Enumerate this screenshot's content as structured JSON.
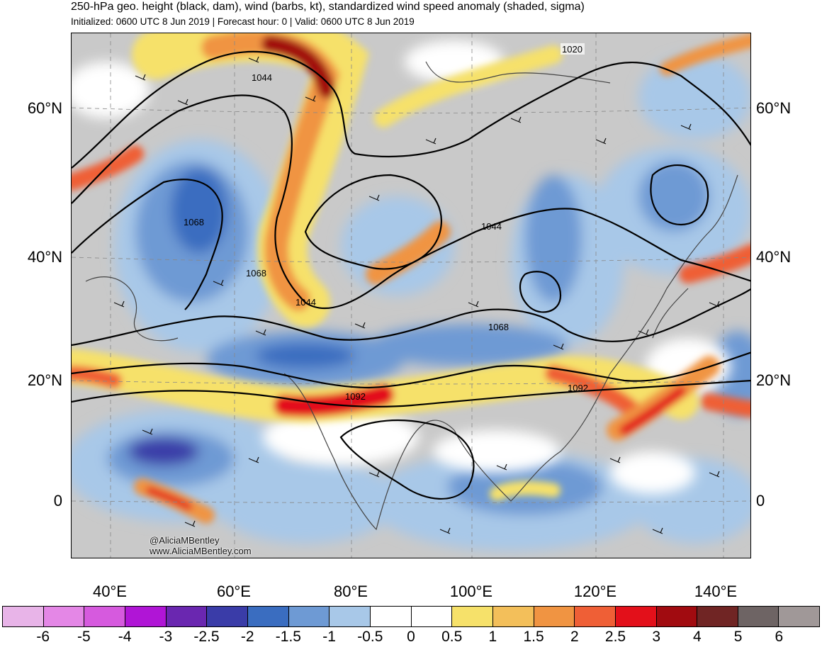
{
  "header": {
    "title": "250-hPa geo. height (black, dam), wind (barbs, kt), standardized wind speed anomaly (shaded, sigma)",
    "subtitle": "Initialized: 0600 UTC 8 Jun 2019 | Forecast hour: 0 | Valid: 0600 UTC 8 Jun 2019"
  },
  "map": {
    "lat_labels": [
      "60°N",
      "40°N",
      "20°N",
      "0"
    ],
    "lon_labels": [
      "40°E",
      "60°E",
      "80°E",
      "100°E",
      "120°E",
      "140°E"
    ],
    "contour_labels": [
      "1020",
      "1044",
      "1068",
      "1068",
      "1044",
      "1044",
      "1068",
      "1092",
      "1092"
    ],
    "credit_handle": "@AliciaMBentley",
    "credit_site": "www.AliciaMBentley.com"
  },
  "colorbar": {
    "labels": [
      "-6",
      "-5",
      "-4",
      "-3",
      "-2.5",
      "-2",
      "-1.5",
      "-1",
      "-0.5",
      "0",
      "0.5",
      "1",
      "1.5",
      "2",
      "2.5",
      "3",
      "4",
      "5",
      "6"
    ],
    "colors": [
      "#e8b4e8",
      "#e487e6",
      "#d65ade",
      "#b015d6",
      "#6a27b0",
      "#3a3ca8",
      "#3a6dc0",
      "#6e9ad4",
      "#a8c8e8",
      "#ffffff",
      "#ffffff",
      "#f6e16a",
      "#f3bf5a",
      "#f09442",
      "#ef5f36",
      "#e3101a",
      "#a10b10",
      "#702524",
      "#6e6464",
      "#a09898"
    ]
  }
}
